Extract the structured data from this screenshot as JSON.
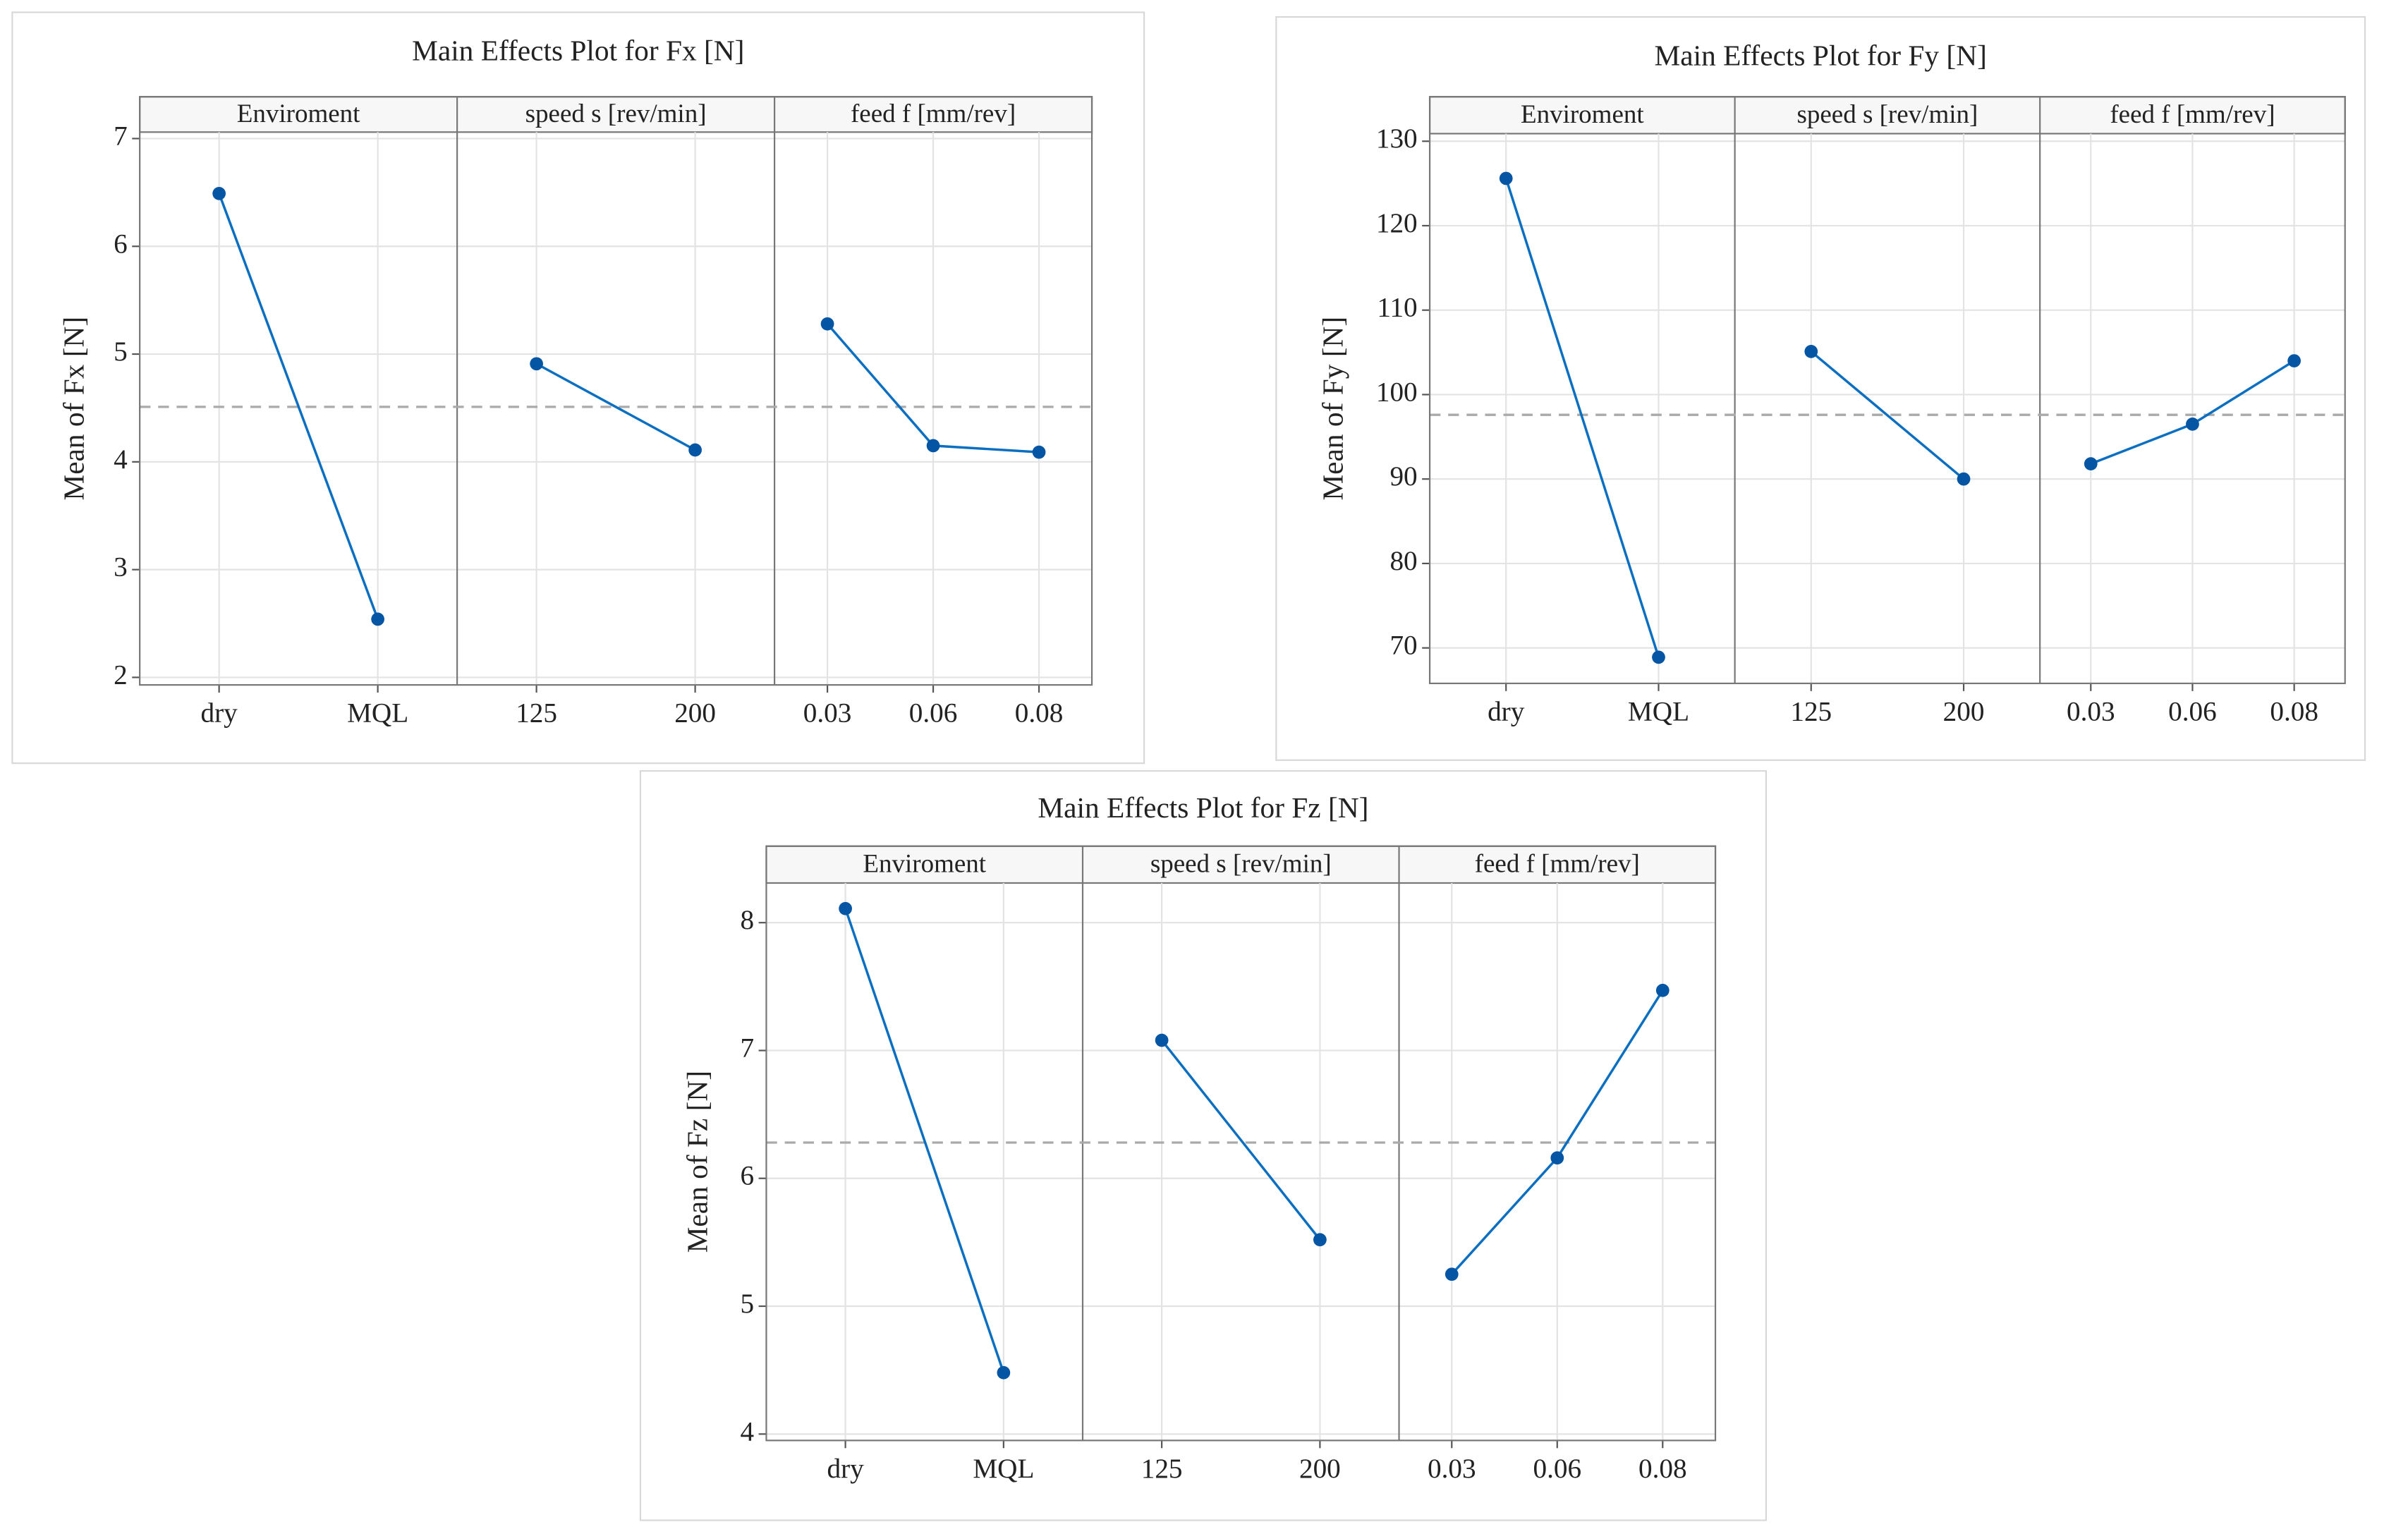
{
  "chart_data": [
    {
      "type": "line",
      "title": "Main Effects Plot for Fx [N]",
      "y_label": "Mean of Fx [N]",
      "panels": [
        {
          "name": "Enviroment",
          "categories": [
            "dry",
            "MQL"
          ],
          "values": [
            6.49,
            2.54
          ]
        },
        {
          "name": "speed s [rev/min]",
          "categories": [
            "125",
            "200"
          ],
          "values": [
            4.91,
            4.11
          ]
        },
        {
          "name": "feed f [mm/rev]",
          "categories": [
            "0.03",
            "0.06",
            "0.08"
          ],
          "values": [
            5.28,
            4.15,
            4.09
          ]
        }
      ],
      "reference_line": 4.51,
      "ylim": [
        1.93,
        7.06
      ],
      "yticks": [
        2,
        3,
        4,
        5,
        6,
        7
      ],
      "color": "#0b6fc1",
      "marker_color": "#0455a4",
      "grid": true
    },
    {
      "type": "line",
      "title": "Main Effects Plot for Fy [N]",
      "y_label": "Mean of Fy [N]",
      "panels": [
        {
          "name": "Enviroment",
          "categories": [
            "dry",
            "MQL"
          ],
          "values": [
            125.6,
            68.9
          ]
        },
        {
          "name": "speed s [rev/min]",
          "categories": [
            "125",
            "200"
          ],
          "values": [
            105.1,
            90.0
          ]
        },
        {
          "name": "feed f [mm/rev]",
          "categories": [
            "0.03",
            "0.06",
            "0.08"
          ],
          "values": [
            91.8,
            96.5,
            104.0
          ]
        }
      ],
      "reference_line": 97.6,
      "ylim": [
        65.8,
        130.9
      ],
      "yticks": [
        70,
        80,
        90,
        100,
        110,
        120,
        130
      ],
      "color": "#0b6fc1",
      "marker_color": "#0455a4",
      "grid": true
    },
    {
      "type": "line",
      "title": "Main Effects Plot for Fz [N]",
      "y_label": "Mean of Fz [N]",
      "panels": [
        {
          "name": "Enviroment",
          "categories": [
            "dry",
            "MQL"
          ],
          "values": [
            8.11,
            4.48
          ]
        },
        {
          "name": "speed s [rev/min]",
          "categories": [
            "125",
            "200"
          ],
          "values": [
            7.08,
            5.52
          ]
        },
        {
          "name": "feed f [mm/rev]",
          "categories": [
            "0.03",
            "0.06",
            "0.08"
          ],
          "values": [
            5.25,
            6.16,
            7.47
          ]
        }
      ],
      "reference_line": 6.28,
      "ylim": [
        3.95,
        8.31
      ],
      "yticks": [
        4,
        5,
        6,
        7,
        8
      ],
      "color": "#0b6fc1",
      "marker_color": "#0455a4",
      "grid": true
    }
  ]
}
